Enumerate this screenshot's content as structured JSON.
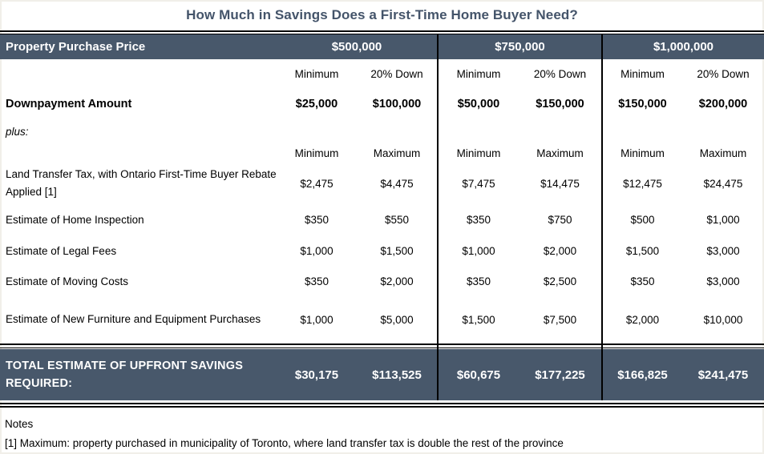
{
  "title": "How Much in Savings Does a First-Time Home Buyer Need?",
  "table": {
    "header": {
      "label": "Property Purchase Price",
      "price_groups": [
        "$500,000",
        "$750,000",
        "$1,000,000"
      ]
    },
    "down_subheaders": [
      "Minimum",
      "20% Down",
      "Minimum",
      "20% Down",
      "Minimum",
      "20% Down"
    ],
    "downpayment": {
      "label": "Downpayment Amount",
      "values": [
        "$25,000",
        "$100,000",
        "$50,000",
        "$150,000",
        "$150,000",
        "$200,000"
      ]
    },
    "plus_label": "plus:",
    "minmax_subheaders": [
      "Minimum",
      "Maximum",
      "Minimum",
      "Maximum",
      "Minimum",
      "Maximum"
    ],
    "expense_rows": [
      {
        "label": "Land Transfer Tax, with Ontario First-Time Buyer Rebate Applied [1]",
        "values": [
          "$2,475",
          "$4,475",
          "$7,475",
          "$14,475",
          "$12,475",
          "$24,475"
        ]
      },
      {
        "label": "Estimate of Home Inspection",
        "values": [
          "$350",
          "$550",
          "$350",
          "$750",
          "$500",
          "$1,000"
        ]
      },
      {
        "label": "Estimate of Legal Fees",
        "values": [
          "$1,000",
          "$1,500",
          "$1,000",
          "$2,000",
          "$1,500",
          "$3,000"
        ]
      },
      {
        "label": "Estimate of Moving Costs",
        "values": [
          "$350",
          "$2,000",
          "$350",
          "$2,500",
          "$350",
          "$3,000"
        ]
      },
      {
        "label": "Estimate of New Furniture and Equipment Purchases",
        "values": [
          "$1,000",
          "$5,000",
          "$1,500",
          "$7,500",
          "$2,000",
          "$10,000"
        ]
      }
    ],
    "total": {
      "label": "TOTAL ESTIMATE OF UPFRONT SAVINGS REQUIRED:",
      "values": [
        "$30,175",
        "$113,525",
        "$60,675",
        "$177,225",
        "$166,825",
        "$241,475"
      ]
    }
  },
  "notes": {
    "heading": "Notes",
    "note1": "[1]  Maximum: property purchased in municipality of Toronto, where land transfer tax is double the rest of the province"
  },
  "colors": {
    "header_bg": "#48586B",
    "title_text": "#44546A"
  }
}
